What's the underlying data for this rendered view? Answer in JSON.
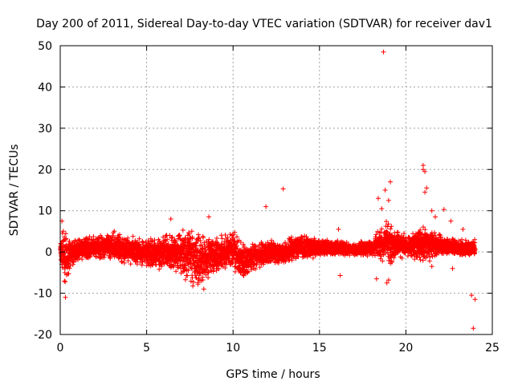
{
  "chart_data": {
    "type": "scatter",
    "title": "Day 200 of 2011, Sidereal Day-to-day VTEC variation (SDTVAR) for receiver dav1",
    "xlabel": "GPS time / hours",
    "ylabel": "SDTVAR / TECUs",
    "xlim": [
      0,
      25
    ],
    "ylim": [
      -20,
      50
    ],
    "xticks": [
      0,
      5,
      10,
      15,
      20,
      25
    ],
    "yticks": [
      -20,
      -10,
      0,
      10,
      20,
      30,
      40,
      50
    ],
    "xtick_labels": [
      "0",
      "5",
      "10",
      "15",
      "20",
      "25"
    ],
    "ytick_labels": [
      "-20",
      "-10",
      "0",
      "10",
      "20",
      "30",
      "40",
      "50"
    ],
    "grid": true,
    "marker": "+",
    "series_color": "#ff0000",
    "x_range": [
      0,
      24
    ],
    "y_envelope": {
      "x": [
        0,
        0.3,
        0.6,
        1,
        2,
        3,
        4,
        5,
        6,
        7,
        7.5,
        8,
        8.5,
        9,
        10,
        10.5,
        11,
        12,
        13,
        14,
        15,
        16,
        17,
        18,
        19,
        20,
        21,
        22,
        23,
        24
      ],
      "upper": [
        5,
        5,
        3,
        3,
        4,
        5,
        4,
        3,
        4,
        6,
        7,
        6,
        4,
        4,
        5,
        3,
        2,
        3,
        3,
        5,
        3,
        3,
        2,
        3,
        8,
        4,
        7,
        4,
        3,
        3
      ],
      "lower": [
        -3,
        -8,
        -4,
        -2,
        -2,
        -2,
        -3,
        -4,
        -4,
        -6,
        -8,
        -10,
        -8,
        -5,
        -4,
        -8,
        -5,
        -3,
        -3,
        -2,
        -1,
        -1,
        -1,
        -1,
        -3,
        -1,
        -3,
        -1,
        -1,
        -1
      ]
    },
    "outliers": [
      {
        "x": 18.7,
        "y": 48.5
      },
      {
        "x": 21.0,
        "y": 21.0
      },
      {
        "x": 21.1,
        "y": 19.5
      },
      {
        "x": 21.0,
        "y": 20.0
      },
      {
        "x": 21.2,
        "y": 15.5
      },
      {
        "x": 21.1,
        "y": 14.5
      },
      {
        "x": 19.1,
        "y": 17.0
      },
      {
        "x": 19.0,
        "y": 12.5
      },
      {
        "x": 18.8,
        "y": 15.0
      },
      {
        "x": 18.4,
        "y": 13.0
      },
      {
        "x": 18.6,
        "y": 10.5
      },
      {
        "x": 12.9,
        "y": 15.3
      },
      {
        "x": 11.9,
        "y": 11.0
      },
      {
        "x": 8.6,
        "y": 8.5
      },
      {
        "x": 6.4,
        "y": 8.0
      },
      {
        "x": 21.5,
        "y": 10.0
      },
      {
        "x": 22.2,
        "y": 10.3
      },
      {
        "x": 21.7,
        "y": 8.5
      },
      {
        "x": 22.6,
        "y": 7.5
      },
      {
        "x": 0.1,
        "y": 7.5
      },
      {
        "x": 0.3,
        "y": -11.0
      },
      {
        "x": 23.9,
        "y": -18.5
      },
      {
        "x": 24.0,
        "y": -11.5
      },
      {
        "x": 23.8,
        "y": -10.5
      },
      {
        "x": 18.3,
        "y": -6.5
      },
      {
        "x": 18.9,
        "y": -7.5
      },
      {
        "x": 19.0,
        "y": -6.8
      },
      {
        "x": 16.2,
        "y": -5.7
      },
      {
        "x": 16.1,
        "y": 5.5
      },
      {
        "x": 21.5,
        "y": -3.5
      },
      {
        "x": 22.7,
        "y": -4.0
      },
      {
        "x": 23.3,
        "y": 5.5
      }
    ]
  }
}
